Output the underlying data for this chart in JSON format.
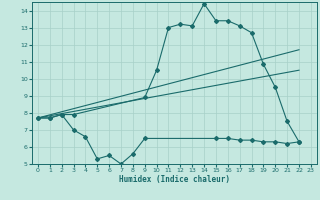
{
  "title": "",
  "xlabel": "Humidex (Indice chaleur)",
  "ylabel": "",
  "bg_color": "#c5e8e0",
  "grid_color": "#a8d0c8",
  "line_color": "#1a6b6b",
  "xlim": [
    -0.5,
    23.5
  ],
  "ylim": [
    5,
    14.5
  ],
  "xticks": [
    0,
    1,
    2,
    3,
    4,
    5,
    6,
    7,
    8,
    9,
    10,
    11,
    12,
    13,
    14,
    15,
    16,
    17,
    18,
    19,
    20,
    21,
    22,
    23
  ],
  "yticks": [
    5,
    6,
    7,
    8,
    9,
    10,
    11,
    12,
    13,
    14
  ],
  "curve_main": {
    "x": [
      0,
      1,
      2,
      3,
      9,
      10,
      11,
      12,
      13,
      14,
      15,
      16,
      17,
      18,
      19,
      20,
      21,
      22
    ],
    "y": [
      7.7,
      7.7,
      7.9,
      7.9,
      8.9,
      10.5,
      13.0,
      13.2,
      13.1,
      14.4,
      13.4,
      13.4,
      13.1,
      12.7,
      10.85,
      9.5,
      7.5,
      6.3
    ]
  },
  "curve_linear1": {
    "x": [
      0,
      22
    ],
    "y": [
      7.7,
      11.7
    ]
  },
  "curve_linear2": {
    "x": [
      0,
      22
    ],
    "y": [
      7.7,
      10.5
    ]
  },
  "curve_low": {
    "x": [
      0,
      1,
      2,
      3,
      4,
      5,
      6,
      7,
      8,
      9,
      15,
      16,
      17,
      18,
      19,
      20,
      21,
      22
    ],
    "y": [
      7.7,
      7.7,
      7.9,
      7.0,
      6.6,
      5.3,
      5.5,
      5.0,
      5.6,
      6.5,
      6.5,
      6.5,
      6.4,
      6.4,
      6.3,
      6.3,
      6.2,
      6.3
    ]
  }
}
